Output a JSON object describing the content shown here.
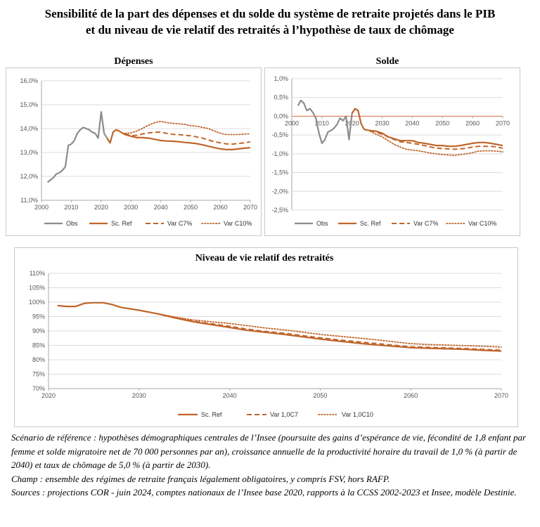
{
  "title": {
    "line1": "Sensibilité de la part des dépenses et du solde du système de retraite projetés dans le PIB",
    "line2": "et du niveau de vie relatif des retraités à l’hypothèse de taux de chômage"
  },
  "colors": {
    "obs": "#8c8c8c",
    "proj": "#c0652b",
    "zero_line": "#e07b5a",
    "grid": "#dcdcdc",
    "axis": "#aaaaaa"
  },
  "chart_data": [
    {
      "type": "line",
      "title": "Dépenses",
      "x_ticks": [
        "2000",
        "2010",
        "2020",
        "2030",
        "2040",
        "2050",
        "2060",
        "2070"
      ],
      "y_ticks": [
        "11,0%",
        "12,0%",
        "13,0%",
        "14,0%",
        "15,0%",
        "16,0%"
      ],
      "xlim": [
        2000,
        2070
      ],
      "ylim": [
        11.0,
        16.0
      ],
      "grid": true,
      "legend": [
        "Obs",
        "Sc. Ref",
        "Var C7%",
        "Var C10%"
      ],
      "legend_placement": "bottom",
      "series": [
        {
          "name": "Obs",
          "style": "obs",
          "x": [
            2002,
            2003,
            2004,
            2005,
            2006,
            2007,
            2008,
            2009,
            2010,
            2011,
            2012,
            2013,
            2014,
            2015,
            2016,
            2017,
            2018,
            2019,
            2020,
            2021,
            2022
          ],
          "y": [
            11.75,
            11.85,
            11.95,
            12.1,
            12.15,
            12.25,
            12.4,
            13.3,
            13.35,
            13.5,
            13.8,
            13.95,
            14.05,
            14.0,
            13.95,
            13.85,
            13.8,
            13.6,
            14.7,
            13.8,
            13.6
          ]
        },
        {
          "name": "Sc. Ref",
          "style": "ref",
          "x": [
            2022,
            2023,
            2024,
            2025,
            2026,
            2028,
            2030,
            2032,
            2034,
            2036,
            2038,
            2040,
            2042,
            2044,
            2046,
            2048,
            2050,
            2052,
            2054,
            2056,
            2058,
            2060,
            2062,
            2064,
            2066,
            2068,
            2070
          ],
          "y": [
            13.6,
            13.4,
            13.85,
            13.95,
            13.9,
            13.75,
            13.68,
            13.62,
            13.62,
            13.6,
            13.55,
            13.5,
            13.48,
            13.47,
            13.45,
            13.42,
            13.4,
            13.37,
            13.32,
            13.26,
            13.2,
            13.15,
            13.12,
            13.12,
            13.15,
            13.18,
            13.2
          ]
        },
        {
          "name": "Var C7%",
          "style": "c7",
          "x": [
            2028,
            2030,
            2032,
            2034,
            2036,
            2038,
            2040,
            2042,
            2044,
            2046,
            2048,
            2050,
            2052,
            2054,
            2056,
            2058,
            2060,
            2062,
            2064,
            2066,
            2068,
            2070
          ],
          "y": [
            13.78,
            13.7,
            13.72,
            13.78,
            13.82,
            13.85,
            13.85,
            13.8,
            13.76,
            13.75,
            13.72,
            13.7,
            13.65,
            13.6,
            13.52,
            13.45,
            13.4,
            13.36,
            13.35,
            13.38,
            13.4,
            13.45
          ]
        },
        {
          "name": "Var C10%",
          "style": "c10",
          "x": [
            2028,
            2030,
            2032,
            2034,
            2036,
            2038,
            2040,
            2042,
            2044,
            2046,
            2048,
            2050,
            2052,
            2054,
            2056,
            2058,
            2060,
            2062,
            2064,
            2066,
            2068,
            2070
          ],
          "y": [
            13.8,
            13.82,
            13.9,
            14.02,
            14.15,
            14.25,
            14.3,
            14.25,
            14.22,
            14.2,
            14.18,
            14.12,
            14.1,
            14.05,
            14.0,
            13.9,
            13.8,
            13.75,
            13.75,
            13.75,
            13.77,
            13.78
          ]
        }
      ]
    },
    {
      "type": "line",
      "title": "Solde",
      "x_ticks": [
        "2000",
        "2010",
        "2020",
        "2030",
        "2040",
        "2050",
        "2060",
        "2070"
      ],
      "y_ticks": [
        "1,0%",
        "0,5%",
        "0,0%",
        "-0,5%",
        "-1,0%",
        "-1,5%",
        "-2,0%",
        "-2,5%"
      ],
      "xlim": [
        2000,
        2070
      ],
      "ylim": [
        -2.5,
        1.0
      ],
      "grid": true,
      "legend": [
        "Obs",
        "Sc. Ref",
        "Var C7%",
        "Var C10%"
      ],
      "legend_placement": "bottom",
      "series": [
        {
          "name": "Obs",
          "style": "obs",
          "x": [
            2002,
            2003,
            2004,
            2005,
            2006,
            2007,
            2008,
            2009,
            2010,
            2011,
            2012,
            2013,
            2014,
            2015,
            2016,
            2017,
            2018,
            2019,
            2020,
            2021,
            2022
          ],
          "y": [
            0.28,
            0.42,
            0.35,
            0.15,
            0.2,
            0.1,
            -0.05,
            -0.45,
            -0.72,
            -0.62,
            -0.42,
            -0.38,
            -0.32,
            -0.22,
            -0.05,
            -0.12,
            0.0,
            -0.62,
            0.08,
            0.2,
            0.15
          ]
        },
        {
          "name": "Sc. Ref",
          "style": "ref",
          "x": [
            2020,
            2021,
            2022,
            2023,
            2024,
            2025,
            2026,
            2028,
            2030,
            2032,
            2034,
            2036,
            2038,
            2040,
            2042,
            2044,
            2046,
            2048,
            2050,
            2052,
            2054,
            2056,
            2058,
            2060,
            2062,
            2064,
            2066,
            2068,
            2070
          ],
          "y": [
            0.08,
            0.2,
            0.15,
            -0.2,
            -0.35,
            -0.37,
            -0.38,
            -0.4,
            -0.45,
            -0.55,
            -0.6,
            -0.65,
            -0.65,
            -0.65,
            -0.7,
            -0.72,
            -0.75,
            -0.78,
            -0.78,
            -0.8,
            -0.8,
            -0.78,
            -0.75,
            -0.72,
            -0.7,
            -0.7,
            -0.72,
            -0.75,
            -0.78
          ]
        },
        {
          "name": "Var C7%",
          "style": "c7",
          "x": [
            2026,
            2028,
            2030,
            2032,
            2034,
            2036,
            2038,
            2040,
            2042,
            2044,
            2046,
            2048,
            2050,
            2052,
            2054,
            2056,
            2058,
            2060,
            2062,
            2064,
            2066,
            2068,
            2070
          ],
          "y": [
            -0.38,
            -0.42,
            -0.48,
            -0.55,
            -0.62,
            -0.68,
            -0.7,
            -0.72,
            -0.75,
            -0.78,
            -0.82,
            -0.85,
            -0.86,
            -0.87,
            -0.88,
            -0.87,
            -0.85,
            -0.82,
            -0.8,
            -0.8,
            -0.8,
            -0.82,
            -0.85
          ]
        },
        {
          "name": "Var C10%",
          "style": "c10",
          "x": [
            2026,
            2028,
            2030,
            2032,
            2034,
            2036,
            2038,
            2040,
            2042,
            2044,
            2046,
            2048,
            2050,
            2052,
            2054,
            2056,
            2058,
            2060,
            2062,
            2064,
            2066,
            2068,
            2070
          ],
          "y": [
            -0.4,
            -0.48,
            -0.55,
            -0.65,
            -0.75,
            -0.82,
            -0.88,
            -0.9,
            -0.92,
            -0.95,
            -0.98,
            -1.0,
            -1.02,
            -1.03,
            -1.04,
            -1.02,
            -1.0,
            -0.97,
            -0.93,
            -0.92,
            -0.92,
            -0.93,
            -0.95
          ]
        }
      ]
    },
    {
      "type": "line",
      "title": "Niveau de vie relatif des retraités",
      "x_ticks": [
        "2020",
        "2030",
        "2040",
        "2050",
        "2060",
        "2070"
      ],
      "y_ticks": [
        "70%",
        "75%",
        "80%",
        "85%",
        "90%",
        "95%",
        "100%",
        "105%",
        "110%"
      ],
      "xlim": [
        2020,
        2070
      ],
      "ylim": [
        70,
        110
      ],
      "grid": true,
      "legend": [
        "Sc. Ref",
        "Var 1,0C7",
        "Var 1,0C10"
      ],
      "legend_placement": "bottom",
      "series": [
        {
          "name": "Sc. Ref",
          "style": "ref",
          "x": [
            2021,
            2022,
            2023,
            2024,
            2025,
            2026,
            2027,
            2028,
            2030,
            2032,
            2034,
            2036,
            2038,
            2040,
            2042,
            2044,
            2046,
            2048,
            2050,
            2052,
            2054,
            2056,
            2058,
            2060,
            2062,
            2064,
            2066,
            2068,
            2070
          ],
          "y": [
            98.8,
            98.5,
            98.5,
            99.6,
            99.8,
            99.8,
            99.2,
            98.2,
            97.2,
            96.0,
            94.5,
            93.2,
            92.2,
            91.2,
            90.2,
            89.5,
            88.8,
            88.0,
            87.2,
            86.5,
            85.8,
            85.2,
            84.7,
            84.2,
            84.0,
            83.8,
            83.6,
            83.3,
            83.0
          ]
        },
        {
          "name": "Var 1,0C7",
          "style": "c7",
          "x": [
            2032,
            2034,
            2036,
            2038,
            2040,
            2042,
            2044,
            2046,
            2048,
            2050,
            2052,
            2054,
            2056,
            2058,
            2060,
            2062,
            2064,
            2066,
            2068,
            2070
          ],
          "y": [
            96.0,
            94.6,
            93.4,
            92.5,
            91.6,
            90.6,
            89.8,
            89.2,
            88.4,
            87.6,
            86.9,
            86.3,
            85.7,
            85.1,
            84.5,
            84.3,
            84.1,
            83.9,
            83.6,
            83.3
          ]
        },
        {
          "name": "Var 1,0C10",
          "style": "c10",
          "x": [
            2032,
            2034,
            2036,
            2038,
            2040,
            2042,
            2044,
            2046,
            2048,
            2050,
            2052,
            2054,
            2056,
            2058,
            2060,
            2062,
            2064,
            2066,
            2068,
            2070
          ],
          "y": [
            96.0,
            94.8,
            93.8,
            93.2,
            92.6,
            91.8,
            91.0,
            90.4,
            89.6,
            88.8,
            88.2,
            87.6,
            87.0,
            86.3,
            85.6,
            85.3,
            85.1,
            84.9,
            84.7,
            84.4
          ]
        }
      ]
    }
  ],
  "notes": {
    "scenario": "Scénario de référence : hypothèses démographiques centrales de l’Insee (poursuite des gains d’espérance de vie, fécondité de 1,8 enfant par femme et solde migratoire net de 70 000 personnes par an), croissance annuelle de la productivité horaire du travail de 1,0 % (à partir de 2040) et taux de chômage de 5,0 % (à partir de 2030).",
    "champ": "Champ : ensemble des régimes de retraite français légalement obligatoires, y compris FSV, hors RAFP.",
    "sources": "Sources : projections COR - juin 2024, comptes nationaux de l’Insee base 2020, rapports à la CCSS 2002-2023 et Insee, modèle Destinie."
  }
}
